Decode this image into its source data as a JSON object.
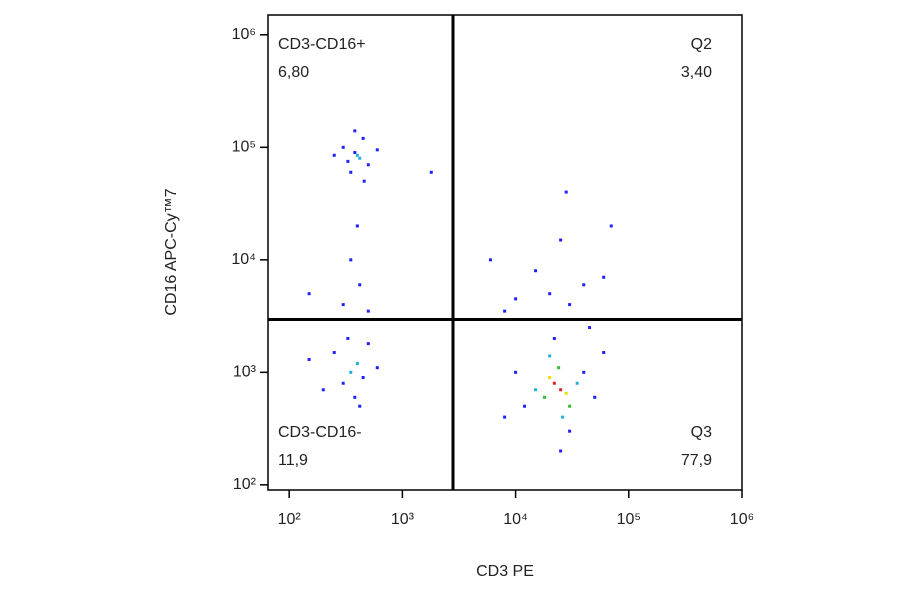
{
  "chart_data": {
    "type": "scatter",
    "x_label": "CD3 PE",
    "y_label": "CD16 APC-Cy™7",
    "xscale": "log",
    "yscale": "log",
    "xlim": [
      65,
      1000000
    ],
    "ylim": [
      90,
      1500000
    ],
    "xticks": [
      {
        "value": 100,
        "label": "10²"
      },
      {
        "value": 1000,
        "label": "10³"
      },
      {
        "value": 10000,
        "label": "10⁴"
      },
      {
        "value": 100000,
        "label": "10⁵"
      },
      {
        "value": 1000000,
        "label": "10⁶"
      }
    ],
    "yticks": [
      {
        "value": 100,
        "label": "10²"
      },
      {
        "value": 1000,
        "label": "10³"
      },
      {
        "value": 10000,
        "label": "10⁴"
      },
      {
        "value": 100000,
        "label": "10⁵"
      },
      {
        "value": 1000000,
        "label": "10⁶"
      }
    ],
    "gate_x": 2800,
    "gate_y": 2950,
    "gate_color": "#000000",
    "quadrants": [
      {
        "name": "CD3-CD16+",
        "value": 6.8,
        "label": "6,80",
        "corner": "top-left"
      },
      {
        "name": "Q2",
        "value": 3.4,
        "label": "3,40",
        "corner": "top-right"
      },
      {
        "name": "CD3-CD16-",
        "value": 11.9,
        "label": "11,9",
        "corner": "bottom-left"
      },
      {
        "name": "Q3",
        "value": 77.9,
        "label": "77,9",
        "corner": "bottom-right"
      }
    ],
    "points": {
      "x": [
        380,
        420,
        300,
        500,
        350,
        450,
        400,
        250,
        600,
        330,
        460,
        380,
        400,
        350,
        420,
        300,
        500,
        150,
        350,
        400,
        300,
        450,
        250,
        500,
        200,
        380,
        600,
        150,
        330,
        420,
        25000,
        22000,
        28000,
        20000,
        30000,
        18000,
        24000,
        35000,
        15000,
        26000,
        20000,
        40000,
        12000,
        30000,
        22000,
        50000,
        10000,
        25000,
        60000,
        8000,
        45000,
        20000,
        30000,
        15000,
        25000,
        40000,
        10000,
        60000,
        28000,
        8000,
        70000,
        6000,
        1800
      ],
      "y": [
        90000,
        80000,
        100000,
        70000,
        60000,
        120000,
        85000,
        85000,
        95000,
        75000,
        50000,
        140000,
        20000,
        10000,
        6000,
        4000,
        3500,
        5000,
        1000,
        1200,
        800,
        900,
        1500,
        1800,
        700,
        600,
        1100,
        1300,
        2000,
        500,
        700,
        800,
        650,
        900,
        500,
        600,
        1100,
        800,
        700,
        400,
        1400,
        1000,
        500,
        300,
        2000,
        600,
        1000,
        200,
        1500,
        400,
        2500,
        5000,
        4000,
        8000,
        15000,
        6000,
        4500,
        7000,
        40000,
        3500,
        20000,
        10000,
        60000
      ],
      "colors": [
        "#2020ff",
        "#20b0e0",
        "#2020ff",
        "#2020ff",
        "#2020ff",
        "#2020ff",
        "#20b0e0",
        "#2020ff",
        "#2020ff",
        "#2020ff",
        "#2020ff",
        "#2020ff",
        "#2020ff",
        "#2020ff",
        "#2020ff",
        "#2020ff",
        "#2020ff",
        "#2020ff",
        "#20b0e0",
        "#20b0e0",
        "#2020ff",
        "#2020ff",
        "#2020ff",
        "#2020ff",
        "#2020ff",
        "#2020ff",
        "#2020ff",
        "#2020ff",
        "#2020ff",
        "#2020ff",
        "#e02020",
        "#e02020",
        "#e8e000",
        "#e8e000",
        "#30c030",
        "#30c030",
        "#30c030",
        "#20b0e0",
        "#20b0e0",
        "#20b0e0",
        "#20b0e0",
        "#2020ff",
        "#2020ff",
        "#2020ff",
        "#2020ff",
        "#2020ff",
        "#2020ff",
        "#2020ff",
        "#2020ff",
        "#2020ff",
        "#2020ff",
        "#2020ff",
        "#2020ff",
        "#2020ff",
        "#2020ff",
        "#2020ff",
        "#2020ff",
        "#2020ff",
        "#2020ff",
        "#2020ff",
        "#2020ff",
        "#2020ff",
        "#2020ff"
      ]
    }
  }
}
